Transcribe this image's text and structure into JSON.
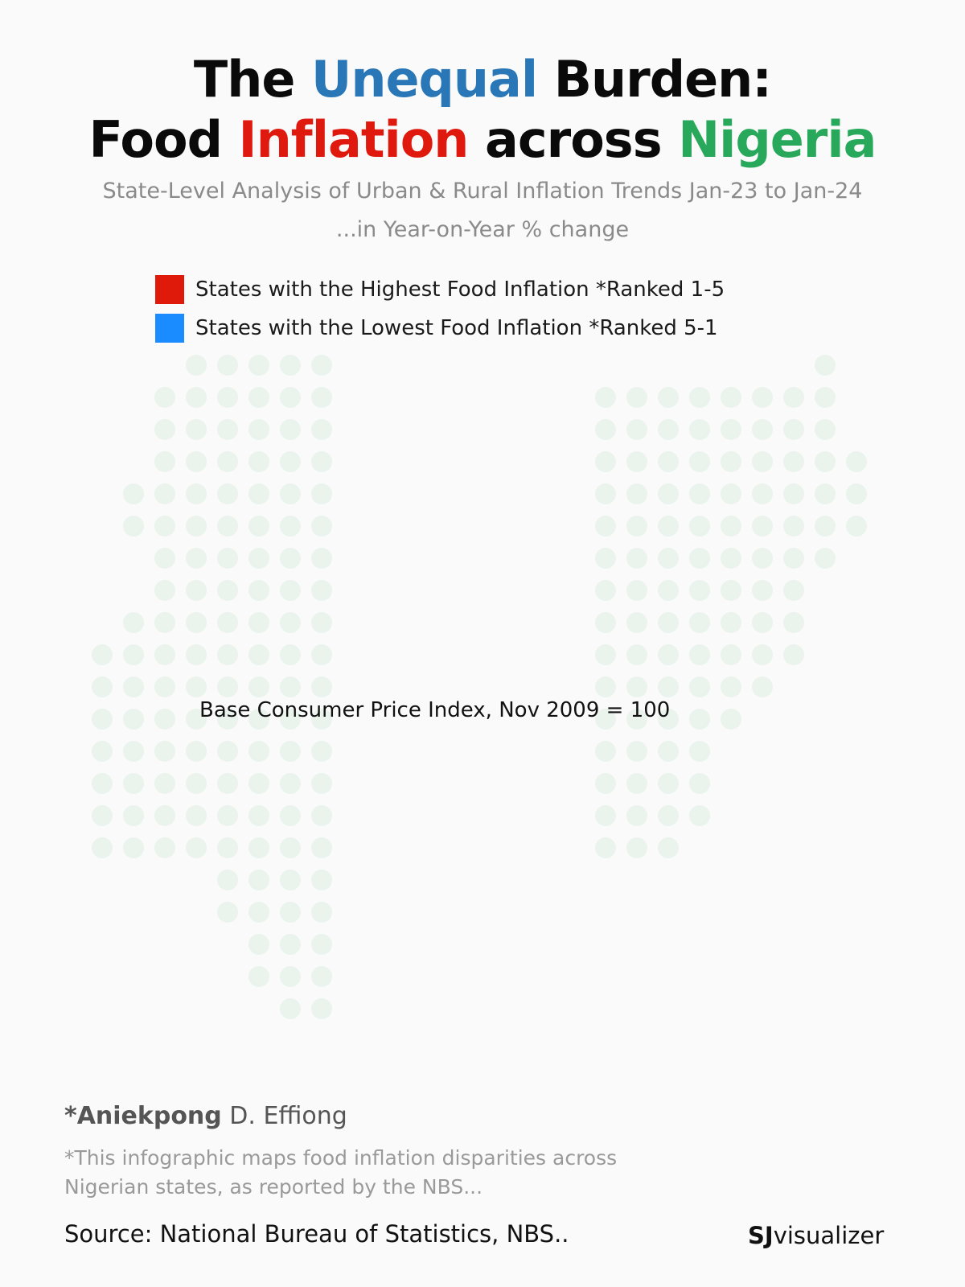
{
  "title": {
    "line1": {
      "a": "The ",
      "b": "Unequal",
      "c": " Burden:"
    },
    "line2": {
      "a": "Food ",
      "b": "Inflation",
      "c": " across ",
      "d": "Nigeria"
    },
    "colors": {
      "dark": "#0a0a0a",
      "blue": "#2a77b8",
      "red": "#e0190f",
      "green": "#27a85a"
    }
  },
  "subtitle": {
    "line1": "State-Level Analysis of Urban & Rural Inflation Trends Jan-23 to Jan-24",
    "line2": "...in Year-on-Year % change"
  },
  "legend": [
    {
      "label": "States with the Highest Food Inflation *Ranked 1-5",
      "color": "#e01a0a"
    },
    {
      "label": "States with the Lowest Food Inflation *Ranked 5-1",
      "color": "#1a8cff"
    }
  ],
  "map": {
    "dot_color": "#eaf3ec"
  },
  "note": "Base Consumer Price Index, Nov  2009 = 100",
  "credits": {
    "author_prefix": "*Aniekpong",
    "author_rest": " D. Effiong",
    "description": "*This infographic maps food inflation disparities across Nigerian states, as reported by the NBS...",
    "source": "Source: National Bureau of Statistics, NBS..",
    "brand_bold": "SJ",
    "brand_rest": "visualizer"
  }
}
